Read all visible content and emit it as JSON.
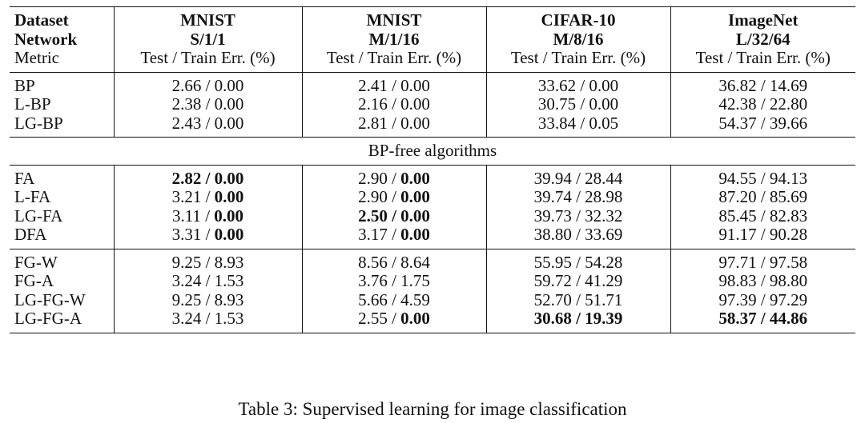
{
  "header": {
    "rows": [
      [
        "Dataset",
        "MNIST",
        "MNIST",
        "CIFAR-10",
        "ImageNet"
      ],
      [
        "Network",
        "S/1/1",
        "M/1/16",
        "M/8/16",
        "L/32/64"
      ],
      [
        "Metric",
        "Test / Train Err. (%)",
        "Test / Train Err. (%)",
        "Test / Train Err. (%)",
        "Test / Train Err. (%)"
      ]
    ]
  },
  "groups": [
    {
      "rows": [
        {
          "name": "BP",
          "cells": [
            [
              "2.66",
              "0.00"
            ],
            [
              "2.41",
              "0.00"
            ],
            [
              "33.62",
              "0.00"
            ],
            [
              "36.82",
              "14.69"
            ]
          ]
        },
        {
          "name": "L-BP",
          "cells": [
            [
              "2.38",
              "0.00"
            ],
            [
              "2.16",
              "0.00"
            ],
            [
              "30.75",
              "0.00"
            ],
            [
              "42.38",
              "22.80"
            ]
          ]
        },
        {
          "name": "LG-BP",
          "cells": [
            [
              "2.43",
              "0.00"
            ],
            [
              "2.81",
              "0.00"
            ],
            [
              "33.84",
              "0.05"
            ],
            [
              "54.37",
              "39.66"
            ]
          ]
        }
      ]
    },
    {
      "section_label": "BP-free algorithms",
      "rows": [
        {
          "name": "FA",
          "cells": [
            [
              "2.82",
              "0.00"
            ],
            [
              "2.90",
              "0.00"
            ],
            [
              "39.94",
              "28.44"
            ],
            [
              "94.55",
              "94.13"
            ]
          ]
        },
        {
          "name": "L-FA",
          "cells": [
            [
              "3.21",
              "0.00"
            ],
            [
              "2.90",
              "0.00"
            ],
            [
              "39.74",
              "28.98"
            ],
            [
              "87.20",
              "85.69"
            ]
          ]
        },
        {
          "name": "LG-FA",
          "cells": [
            [
              "3.11",
              "0.00"
            ],
            [
              "2.50",
              "0.00"
            ],
            [
              "39.73",
              "32.32"
            ],
            [
              "85.45",
              "82.83"
            ]
          ]
        },
        {
          "name": "DFA",
          "cells": [
            [
              "3.31",
              "0.00"
            ],
            [
              "3.17",
              "0.00"
            ],
            [
              "38.80",
              "33.69"
            ],
            [
              "91.17",
              "90.28"
            ]
          ]
        }
      ]
    },
    {
      "rows": [
        {
          "name": "FG-W",
          "cells": [
            [
              "9.25",
              "8.93"
            ],
            [
              "8.56",
              "8.64"
            ],
            [
              "55.95",
              "54.28"
            ],
            [
              "97.71",
              "97.58"
            ]
          ]
        },
        {
          "name": "FG-A",
          "cells": [
            [
              "3.24",
              "1.53"
            ],
            [
              "3.76",
              "1.75"
            ],
            [
              "59.72",
              "41.29"
            ],
            [
              "98.83",
              "98.80"
            ]
          ]
        },
        {
          "name": "LG-FG-W",
          "cells": [
            [
              "9.25",
              "8.93"
            ],
            [
              "5.66",
              "4.59"
            ],
            [
              "52.70",
              "51.71"
            ],
            [
              "97.39",
              "97.29"
            ]
          ]
        },
        {
          "name": "LG-FG-A",
          "cells": [
            [
              "3.24",
              "1.53"
            ],
            [
              "2.55",
              "0.00"
            ],
            [
              "30.68",
              "19.39"
            ],
            [
              "58.37",
              "44.86"
            ]
          ]
        }
      ]
    }
  ],
  "bold": [
    "1.0.0",
    "1.0.1",
    "1.0.3",
    "1.1.1",
    "1.1.3",
    "1.2.1",
    "1.2.2",
    "1.2.3",
    "1.3.1",
    "1.3.3",
    "2.3.3",
    "2.3.4",
    "2.3.5",
    "2.3.6",
    "2.3.7"
  ],
  "caption": "Table 3: Supervised learning for image classification"
}
